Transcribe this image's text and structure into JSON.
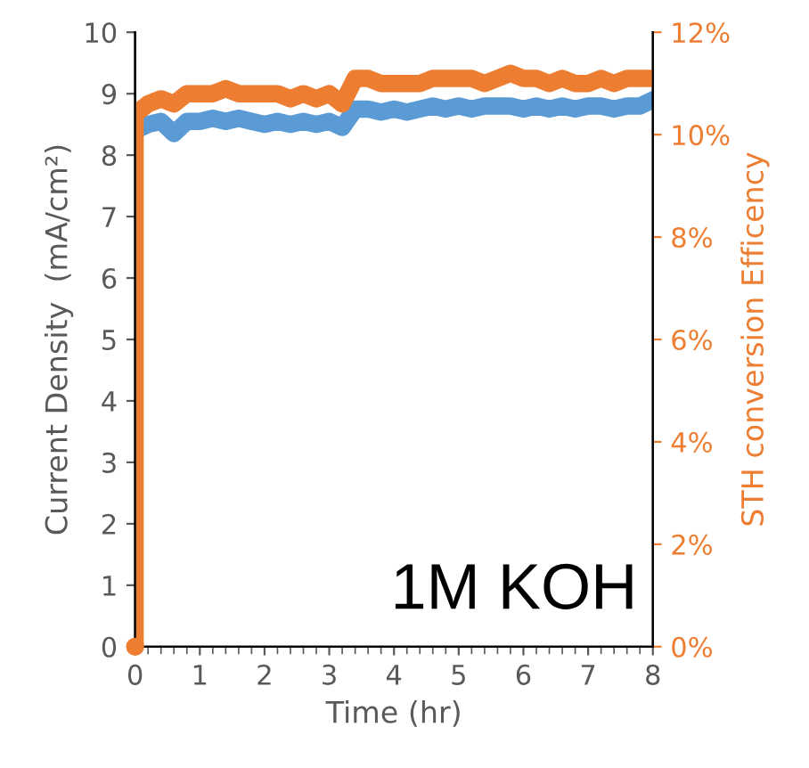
{
  "chart_data": {
    "type": "line",
    "xlabel": "Time (hr)",
    "ylabel": "Current Density  (mA/cm²)",
    "y2label": "STH conversion Efficency",
    "annotations": [
      "1M KOH"
    ],
    "x": [
      0,
      0.2,
      0.4,
      0.6,
      0.8,
      1,
      1.2,
      1.4,
      1.6,
      1.8,
      2,
      2.2,
      2.4,
      2.6,
      2.8,
      3,
      3.2,
      3.4,
      3.6,
      3.8,
      4,
      4.2,
      4.4,
      4.6,
      4.8,
      5,
      5.2,
      5.4,
      5.6,
      5.8,
      6,
      6.2,
      6.4,
      6.6,
      6.8,
      7,
      7.2,
      7.4,
      7.6,
      7.8,
      8
    ],
    "series": [
      {
        "color": "#5b9bd5",
        "values": [
          8.4,
          8.5,
          8.55,
          8.35,
          8.55,
          8.55,
          8.6,
          8.55,
          8.6,
          8.55,
          8.5,
          8.55,
          8.5,
          8.55,
          8.5,
          8.55,
          8.45,
          8.75,
          8.75,
          8.7,
          8.75,
          8.7,
          8.75,
          8.8,
          8.75,
          8.8,
          8.75,
          8.8,
          8.8,
          8.8,
          8.75,
          8.8,
          8.75,
          8.8,
          8.75,
          8.8,
          8.8,
          8.75,
          8.8,
          8.8,
          8.9
        ]
      },
      {
        "color": "#ed7d31",
        "axis": "y2",
        "type": "scatter",
        "x": [
          0
        ],
        "values": [
          0
        ]
      },
      {
        "color": "#ed7d31",
        "axis": "y2",
        "x": [
          0,
          0,
          0.2,
          0.4,
          0.6,
          0.8,
          1,
          1.2,
          1.4,
          1.6,
          1.8,
          2,
          2.2,
          2.4,
          2.6,
          2.8,
          3,
          3.2,
          3.4,
          3.6,
          3.8,
          4,
          4.2,
          4.4,
          4.6,
          4.8,
          5,
          5.2,
          5.4,
          5.6,
          5.8,
          6,
          6.2,
          6.4,
          6.6,
          6.8,
          7,
          7.2,
          7.4,
          7.6,
          7.8,
          8
        ],
        "values": [
          0,
          10.4,
          10.6,
          10.7,
          10.6,
          10.8,
          10.8,
          10.8,
          10.9,
          10.8,
          10.8,
          10.8,
          10.8,
          10.7,
          10.8,
          10.7,
          10.8,
          10.6,
          11.1,
          11.1,
          11.0,
          11.0,
          11.0,
          11.0,
          11.1,
          11.1,
          11.1,
          11.1,
          11.0,
          11.1,
          11.2,
          11.1,
          11.1,
          11.0,
          11.1,
          11.0,
          11.0,
          11.1,
          11.0,
          11.1,
          11.1,
          11.1
        ]
      }
    ],
    "xlim": [
      0,
      8
    ],
    "xticks": [
      0,
      1,
      2,
      3,
      4,
      5,
      6,
      7,
      8
    ],
    "ylim": [
      0,
      10
    ],
    "yticks": [
      0,
      1,
      2,
      3,
      4,
      5,
      6,
      7,
      8,
      9,
      10
    ],
    "y2lim": [
      0,
      12
    ],
    "y2ticks": [
      {
        "value": 0,
        "label": "0%"
      },
      {
        "value": 2,
        "label": "2%"
      },
      {
        "value": 4,
        "label": "4%"
      },
      {
        "value": 6,
        "label": "6%"
      },
      {
        "value": 8,
        "label": "8%"
      },
      {
        "value": 10,
        "label": "10%"
      },
      {
        "value": 12,
        "label": "12%"
      }
    ],
    "grid": false,
    "legend": false
  }
}
